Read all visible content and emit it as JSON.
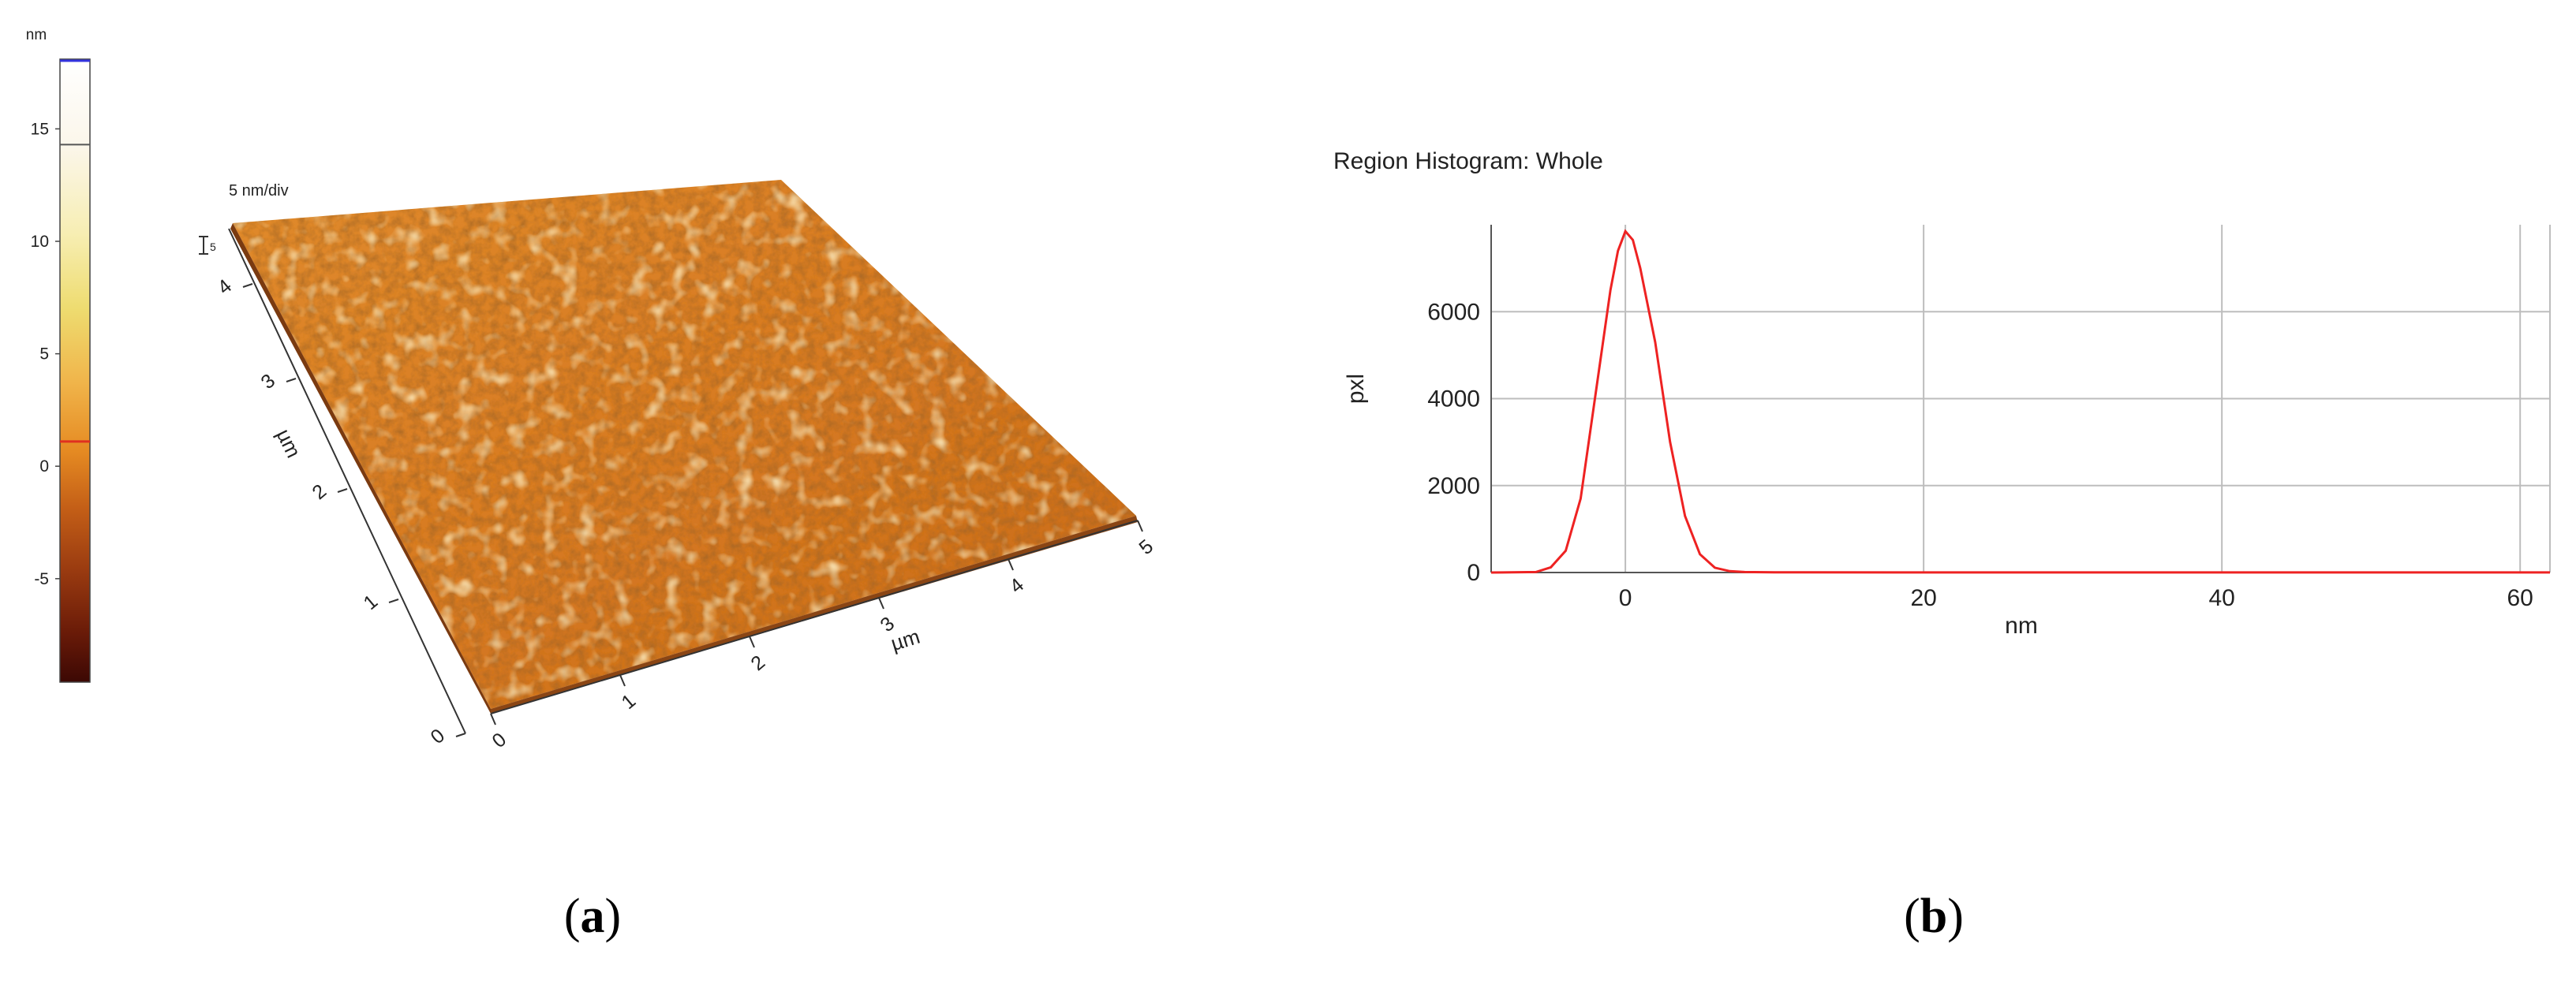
{
  "panels": [
    {
      "id": "a",
      "letter": "a",
      "open": "(",
      "close": ")"
    },
    {
      "id": "b",
      "letter": "b",
      "open": "(",
      "close": ")"
    }
  ],
  "colorbar": {
    "unit": "nm",
    "ticks": [
      15,
      10,
      5,
      0,
      -5
    ],
    "range": [
      -9.6,
      18.1
    ],
    "marker_high": 14.3,
    "marker_low": 1.1
  },
  "surface": {
    "z_scale_label": "5 nm/div",
    "z_tick_label": "5",
    "x_axis": {
      "label": "µm",
      "ticks": [
        "0",
        "1",
        "2",
        "3",
        "4",
        "5"
      ]
    },
    "y_axis": {
      "label": "µm",
      "ticks": [
        "0",
        "1",
        "2",
        "3",
        "4"
      ]
    }
  },
  "chart_data": {
    "type": "line",
    "title": "Region Histogram: Whole",
    "xlabel": "nm",
    "ylabel": "pxl",
    "xlim": [
      -9,
      62
    ],
    "ylim": [
      0,
      8000
    ],
    "xticks": [
      0,
      20,
      40,
      60
    ],
    "yticks": [
      0,
      2000,
      4000,
      6000
    ],
    "grid": true,
    "color": "#ee2222",
    "x": [
      -9,
      -6,
      -5,
      -4,
      -3,
      -2,
      -1,
      -0.5,
      0,
      0.5,
      1,
      2,
      3,
      4,
      5,
      6,
      7,
      8,
      10,
      20,
      30,
      40,
      50,
      55,
      62
    ],
    "y": [
      0,
      10,
      120,
      500,
      1700,
      4100,
      6500,
      7400,
      7850,
      7650,
      7000,
      5300,
      3000,
      1300,
      420,
      110,
      30,
      10,
      5,
      2,
      2,
      2,
      2,
      2,
      2
    ]
  }
}
